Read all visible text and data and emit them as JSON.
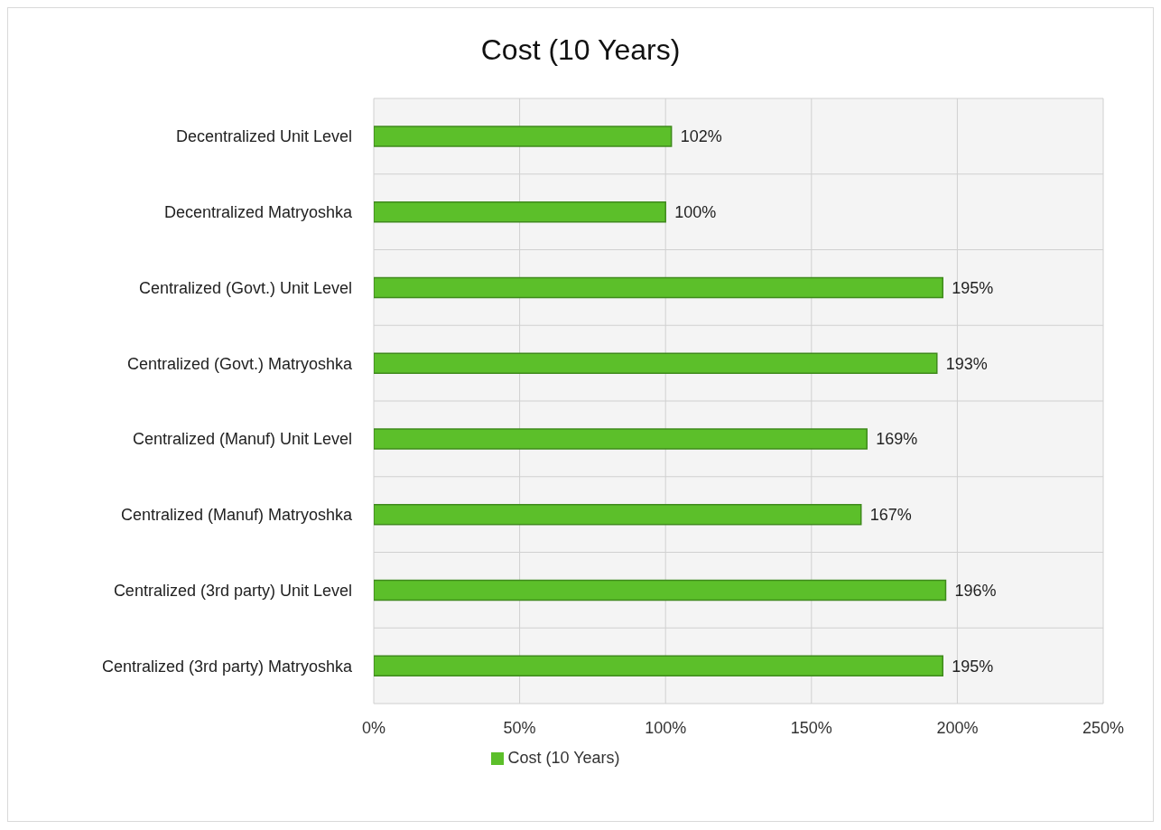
{
  "chart_data": {
    "type": "bar",
    "orientation": "horizontal",
    "title": "Cost (10 Years)",
    "categories": [
      "Decentralized Unit Level",
      "Decentralized Matryoshka",
      "Centralized (Govt.) Unit Level",
      "Centralized (Govt.) Matryoshka",
      "Centralized (Manuf) Unit Level",
      "Centralized (Manuf) Matryoshka",
      "Centralized (3rd party) Unit Level",
      "Centralized (3rd party) Matryoshka"
    ],
    "series": [
      {
        "name": "Cost (10 Years)",
        "color": "#5cbf2a",
        "values": [
          102,
          100,
          195,
          193,
          169,
          167,
          196,
          195
        ],
        "value_labels": [
          "102%",
          "100%",
          "195%",
          "193%",
          "169%",
          "167%",
          "196%",
          "195%"
        ]
      }
    ],
    "xlim": [
      0,
      250
    ],
    "xticks": [
      {
        "value": 0,
        "label": "0%"
      },
      {
        "value": 50,
        "label": "50%"
      },
      {
        "value": 100,
        "label": "100%"
      },
      {
        "value": 150,
        "label": "150%"
      },
      {
        "value": 200,
        "label": "200%"
      },
      {
        "value": 250,
        "label": "250%"
      }
    ],
    "grid": true,
    "legend": "bottom"
  }
}
